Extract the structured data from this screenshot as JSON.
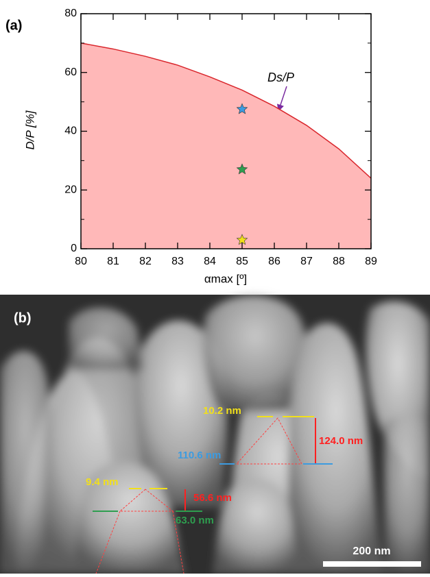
{
  "chart_data": {
    "type": "area",
    "panel_label": "(a)",
    "ylabel": "D/P [%]",
    "xlabel": "αmax [º]",
    "annotation": "Ds/P",
    "x": [
      80,
      81,
      82,
      83,
      84,
      85,
      86,
      87,
      88,
      89
    ],
    "values": [
      70,
      68,
      65.5,
      62.5,
      58.5,
      54,
      48.5,
      42,
      34,
      24
    ],
    "color": "#d9262c",
    "fill": "#ffb8b8",
    "markers": [
      {
        "x": 85,
        "y": 47.5,
        "color": "#3c9be0"
      },
      {
        "x": 85,
        "y": 27,
        "color": "#2e9e4f"
      },
      {
        "x": 85,
        "y": 3,
        "color": "#f2e01a"
      }
    ],
    "xlim": [
      80,
      89
    ],
    "xticks": [
      80,
      81,
      82,
      83,
      84,
      85,
      86,
      87,
      88,
      89
    ],
    "ylim": [
      0,
      80
    ],
    "yticks": [
      0,
      20,
      40,
      60,
      80
    ]
  },
  "panel_b": {
    "label": "(b)",
    "annotations": [
      "10.2 nm",
      "124.0 nm",
      "110.6 nm",
      "9.4 nm",
      "56.6 nm",
      "63.0 nm"
    ],
    "scale_bar": "200 nm"
  }
}
